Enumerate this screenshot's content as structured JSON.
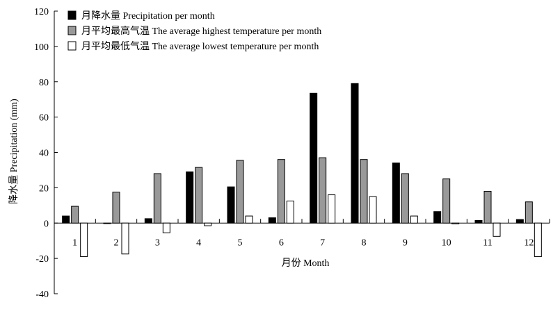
{
  "chart_data": {
    "type": "bar",
    "categories": [
      "1",
      "2",
      "3",
      "4",
      "5",
      "6",
      "7",
      "8",
      "9",
      "10",
      "11",
      "12"
    ],
    "series": [
      {
        "name": "月降水量 Precipitation per month",
        "color": "#000000",
        "values": [
          4,
          0,
          2.5,
          29,
          20.5,
          3,
          73.5,
          79,
          34,
          6.5,
          1.5,
          2
        ]
      },
      {
        "name": "月平均最高气温 The average highest temperature per month",
        "color": "#999999",
        "values": [
          9.5,
          17.5,
          28,
          31.5,
          35.5,
          36,
          37,
          36,
          28,
          25,
          18,
          12
        ]
      },
      {
        "name": "月平均最低气温 The average lowest temperature per month",
        "color": "#ffffff",
        "values": [
          -19,
          -17.5,
          -5.5,
          -1.5,
          4,
          12.5,
          16,
          15,
          4,
          -0.5,
          -7.5,
          -19
        ]
      }
    ],
    "title": "",
    "xlabel": "月份 Month",
    "ylabel": "降水量 Precipitation (mm)",
    "ylim": [
      -40,
      120
    ],
    "yticks": [
      -40,
      -20,
      0,
      20,
      40,
      60,
      80,
      100,
      120
    ],
    "grid": false,
    "legend_position": "top-left"
  }
}
